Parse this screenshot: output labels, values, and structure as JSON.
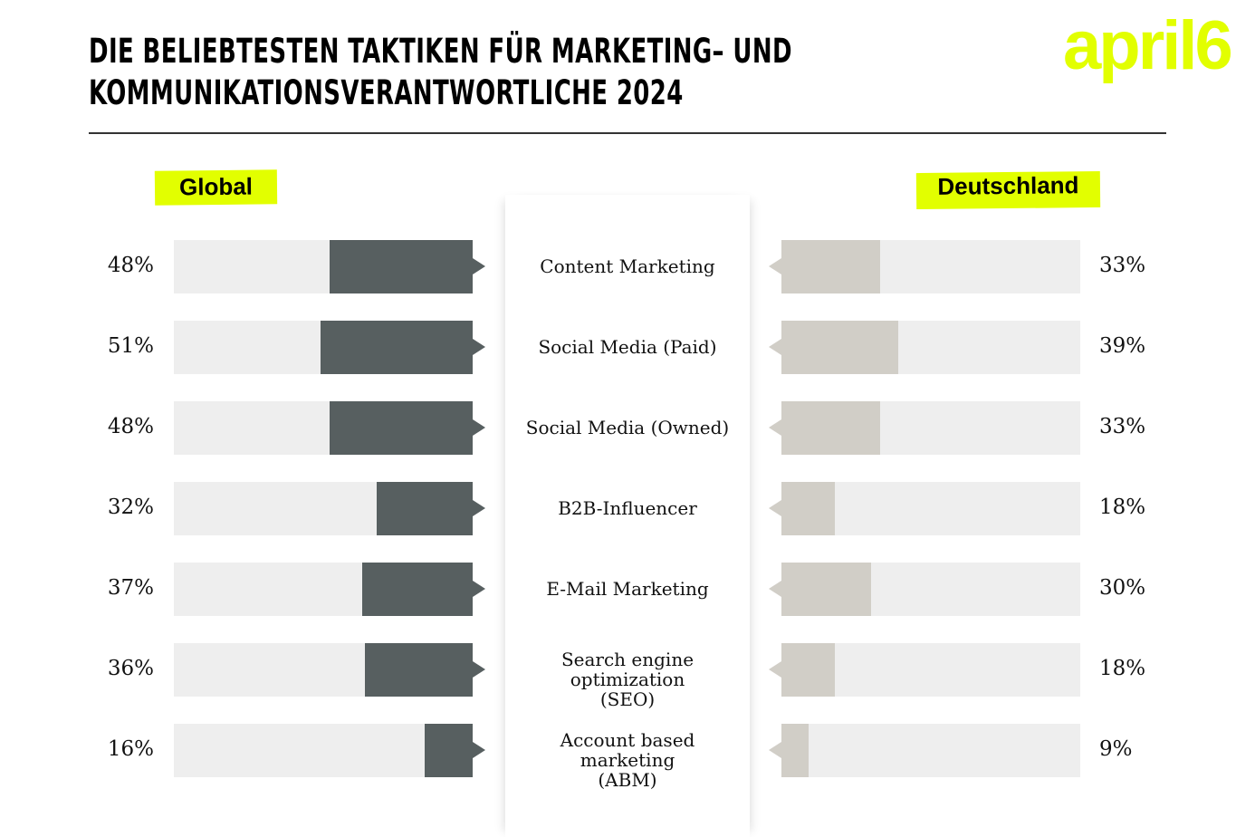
{
  "header": {
    "title_line1": "DIE BELIEBTESTEN TAKTIKEN FÜR MARKETING– UND",
    "title_line2": "KOMMUNIKATIONSVERANTWORTLICHE 2024",
    "logo": "april6"
  },
  "chart_data": {
    "type": "bar",
    "title": "DIE BELIEBTESTEN TAKTIKEN FÜR MARKETING– UND KOMMUNIKATIONSVERANTWORTLICHE 2024",
    "categories": [
      "Content Marketing",
      "Social Media (Paid)",
      "Social Media (Owned)",
      "B2B-Influencer",
      "E-Mail Marketing",
      "Search engine optimization (SEO)",
      "Account based marketing (ABM)"
    ],
    "series": [
      {
        "name": "Global",
        "values": [
          48,
          51,
          48,
          32,
          37,
          36,
          16
        ],
        "labels": [
          "48%",
          "51%",
          "48%",
          "32%",
          "37%",
          "36%",
          "16%"
        ],
        "color": "#575f60"
      },
      {
        "name": "Deutschland",
        "values": [
          33,
          39,
          33,
          18,
          30,
          18,
          9
        ],
        "labels": [
          "33%",
          "39%",
          "33%",
          "18%",
          "30%",
          "18%",
          "9%"
        ],
        "color": "#d1cec7"
      }
    ],
    "ylim": [
      0,
      100
    ],
    "track_color": "#eeeeee",
    "accent": "#e2ff00"
  }
}
